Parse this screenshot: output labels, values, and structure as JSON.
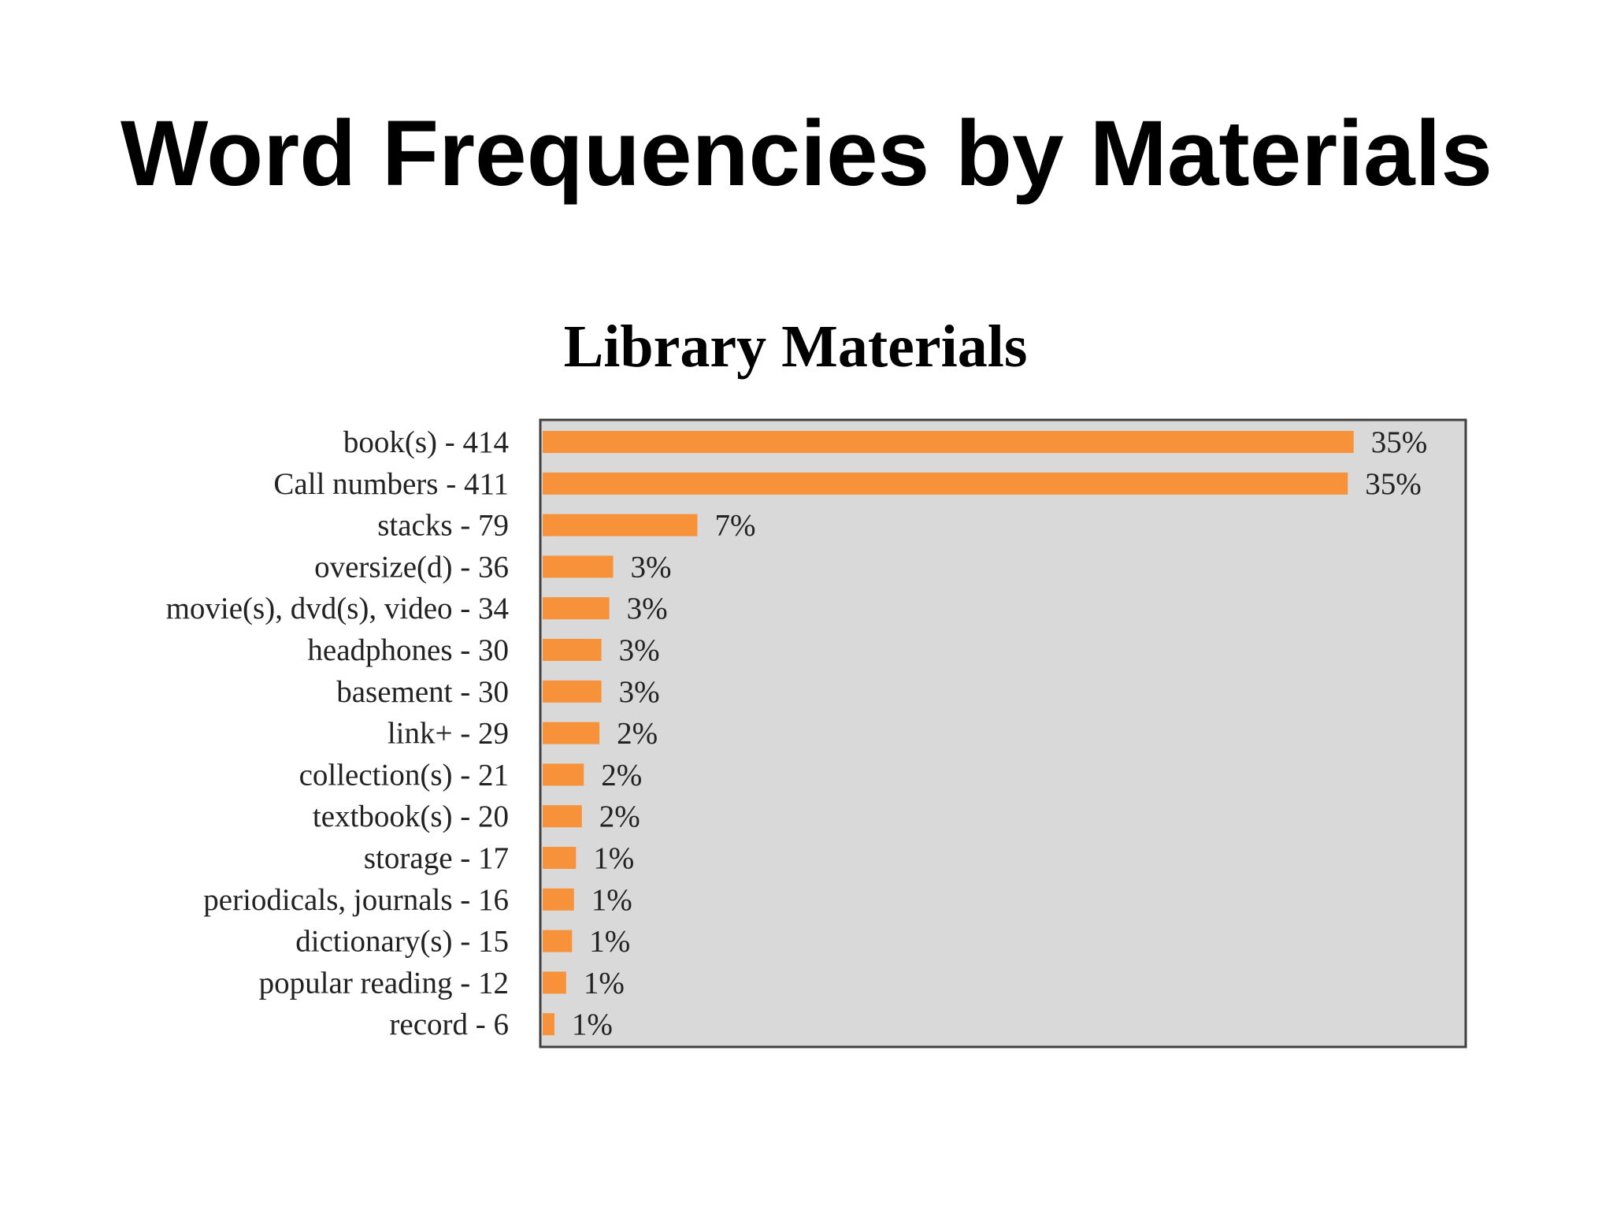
{
  "slide": {
    "title": "Word Frequencies by Materials"
  },
  "colors": {
    "bar": "#f7923a",
    "plot_background": "#d9d9d9",
    "plot_border": "#404040"
  },
  "chart_data": {
    "type": "bar",
    "orientation": "horizontal",
    "title": "Library Materials",
    "categories": [
      "book(s) - 414",
      "Call numbers - 411",
      "stacks - 79",
      "oversize(d) - 36",
      "movie(s), dvd(s), video - 34",
      "headphones - 30",
      "basement - 30",
      "link+ - 29",
      "collection(s) - 21",
      "textbook(s) - 20",
      "storage - 17",
      "periodicals, journals - 16",
      "dictionary(s) - 15",
      "popular reading - 12",
      "record - 6"
    ],
    "values": [
      414,
      411,
      79,
      36,
      34,
      30,
      30,
      29,
      21,
      20,
      17,
      16,
      15,
      12,
      6
    ],
    "data_labels": [
      "35%",
      "35%",
      "7%",
      "3%",
      "3%",
      "3%",
      "3%",
      "2%",
      "2%",
      "2%",
      "1%",
      "1%",
      "1%",
      "1%",
      "1%"
    ],
    "xlim": [
      0,
      470
    ],
    "grid": false,
    "legend": "none"
  }
}
